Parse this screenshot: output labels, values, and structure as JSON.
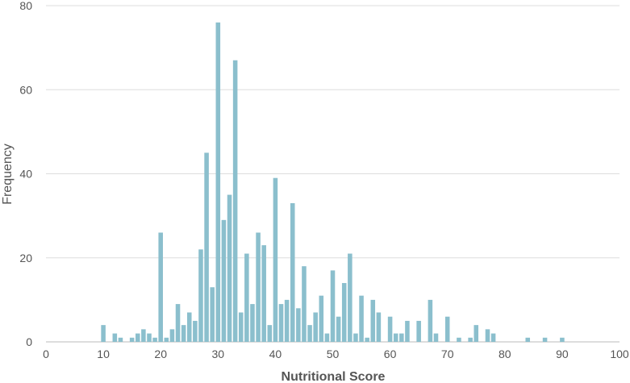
{
  "chart_data": {
    "type": "bar",
    "xlabel": "Nutritional Score",
    "ylabel": "Frequency",
    "xlim": [
      0,
      100
    ],
    "ylim": [
      0,
      80
    ],
    "xticks": [
      "0",
      "10",
      "20",
      "30",
      "40",
      "50",
      "60",
      "70",
      "80",
      "90",
      "100"
    ],
    "yticks": [
      "0",
      "20",
      "40",
      "60",
      "80"
    ],
    "grid": "horizontal",
    "bar_color": "#8bbfcd",
    "x": [
      10,
      12,
      13,
      15,
      16,
      17,
      18,
      19,
      20,
      21,
      22,
      23,
      24,
      25,
      26,
      27,
      28,
      29,
      30,
      31,
      32,
      33,
      34,
      35,
      36,
      37,
      38,
      39,
      40,
      41,
      42,
      43,
      44,
      45,
      46,
      47,
      48,
      49,
      50,
      51,
      52,
      53,
      54,
      55,
      56,
      57,
      58,
      60,
      61,
      62,
      63,
      65,
      67,
      68,
      70,
      72,
      74,
      75,
      77,
      78,
      84,
      87,
      90
    ],
    "values": [
      4,
      2,
      1,
      1,
      2,
      3,
      2,
      1,
      26,
      1,
      3,
      9,
      4,
      7,
      5,
      22,
      45,
      13,
      76,
      29,
      35,
      67,
      7,
      21,
      9,
      26,
      23,
      4,
      39,
      9,
      10,
      33,
      8,
      18,
      4,
      7,
      11,
      2,
      17,
      6,
      14,
      21,
      2,
      11,
      1,
      10,
      7,
      6,
      2,
      2,
      5,
      5,
      10,
      2,
      6,
      1,
      1,
      4,
      3,
      2,
      1,
      1,
      1
    ]
  }
}
